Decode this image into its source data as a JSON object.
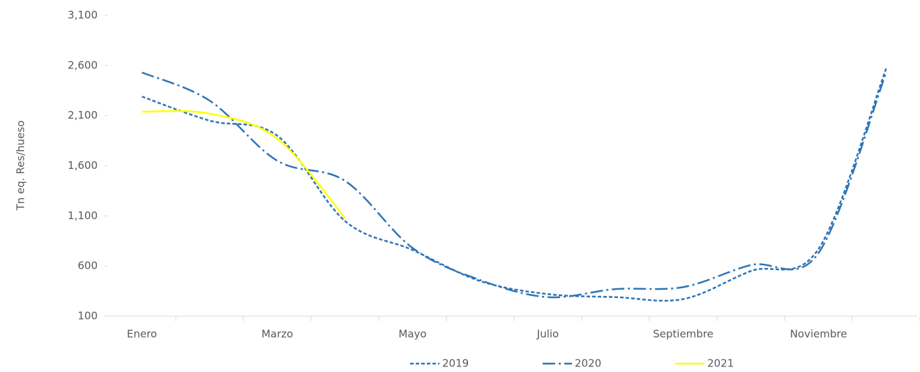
{
  "chart_data": {
    "type": "line",
    "y_label": "Tn eq. Res/hueso",
    "categories": [
      "Enero",
      null,
      "Marzo",
      null,
      "Mayo",
      null,
      "Julio",
      null,
      "Septiembre",
      null,
      "Noviembre",
      null
    ],
    "series": [
      {
        "name": "2019",
        "color": "#2e75b6",
        "dash": "5,3",
        "values": [
          2290,
          2050,
          1900,
          1050,
          760,
          450,
          320,
          290,
          270,
          550,
          770,
          2570
        ]
      },
      {
        "name": "2020",
        "color": "#2e75b6",
        "dash": "18,5,3,5",
        "values": [
          2530,
          2250,
          1650,
          1450,
          780,
          460,
          290,
          370,
          390,
          610,
          730,
          2530
        ]
      },
      {
        "name": "2021",
        "color": "#ffff00",
        "dash": "none",
        "values": [
          2140,
          2120,
          1870,
          1080,
          null,
          null,
          null,
          null,
          null,
          null,
          null,
          null
        ]
      }
    ],
    "ylim": [
      100,
      3100
    ],
    "yticks": [
      100,
      600,
      {
        "value": 1100,
        "label": "1,100"
      },
      {
        "value": 1600,
        "label": "1,600"
      },
      {
        "value": 2100,
        "label": "2,100"
      },
      {
        "value": 2600,
        "label": "2,600"
      },
      {
        "value": 3100,
        "label": "3,100"
      }
    ],
    "grid": false,
    "legend": "bottom"
  }
}
